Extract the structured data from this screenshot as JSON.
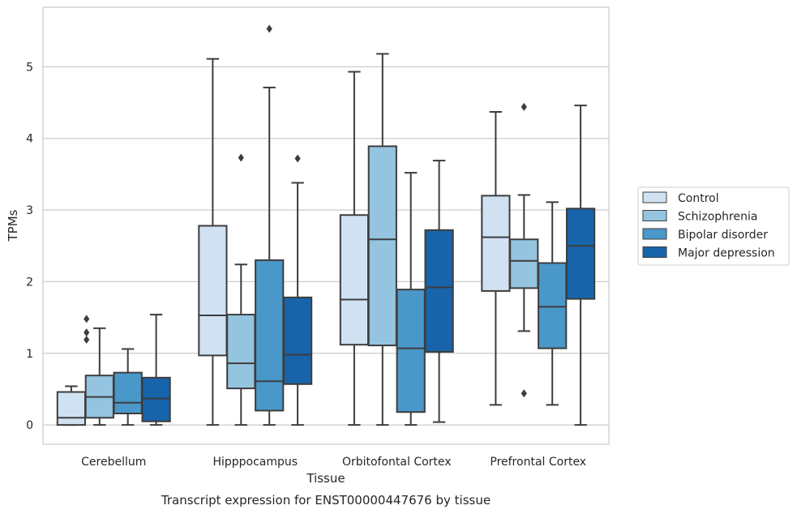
{
  "caption": "Transcript expression for ENST00000447676 by tissue",
  "chart_data": {
    "type": "boxplot",
    "xlabel": "Tissue",
    "ylabel": "TPMs",
    "ylim": [
      -0.27,
      5.83
    ],
    "yticks": [
      0,
      1,
      2,
      3,
      4,
      5
    ],
    "grid": "horizontal",
    "legend_position": "right",
    "categories": [
      "Cerebellum",
      "Hipppocampus",
      "Orbitofontal Cortex",
      "Prefrontal Cortex"
    ],
    "series": [
      {
        "name": "Control",
        "color": "#d0e1f2",
        "boxes": [
          {
            "whisker_low": 0,
            "q1": 0,
            "median": 0.1,
            "q3": 0.46,
            "whisker_high": 0.54,
            "outliers": []
          },
          {
            "whisker_low": 0,
            "q1": 0.97,
            "median": 1.53,
            "q3": 2.78,
            "whisker_high": 5.11,
            "outliers": []
          },
          {
            "whisker_low": 0,
            "q1": 1.12,
            "median": 1.75,
            "q3": 2.93,
            "whisker_high": 4.93,
            "outliers": []
          },
          {
            "whisker_low": 0.28,
            "q1": 1.87,
            "median": 2.62,
            "q3": 3.2,
            "whisker_high": 4.37,
            "outliers": []
          }
        ]
      },
      {
        "name": "Schizophrenia",
        "color": "#94c4df",
        "boxes": [
          {
            "whisker_low": 0,
            "q1": 0.1,
            "median": 0.39,
            "q3": 0.69,
            "whisker_high": 1.35,
            "outliers": []
          },
          {
            "whisker_low": 0,
            "q1": 0.51,
            "median": 0.86,
            "q3": 1.54,
            "whisker_high": 2.24,
            "outliers": [
              3.73
            ]
          },
          {
            "whisker_low": 0,
            "q1": 1.11,
            "median": 2.59,
            "q3": 3.89,
            "whisker_high": 5.18,
            "outliers": []
          },
          {
            "whisker_low": 1.31,
            "q1": 1.91,
            "median": 2.29,
            "q3": 2.59,
            "whisker_high": 3.21,
            "outliers": [
              0.44,
              4.44
            ]
          }
        ]
      },
      {
        "name": "Bipolar disorder",
        "color": "#4a98c9",
        "boxes": [
          {
            "whisker_low": 0,
            "q1": 0.16,
            "median": 0.31,
            "q3": 0.73,
            "whisker_high": 1.06,
            "outliers": []
          },
          {
            "whisker_low": 0,
            "q1": 0.2,
            "median": 0.61,
            "q3": 2.3,
            "whisker_high": 4.71,
            "outliers": [
              5.53
            ]
          },
          {
            "whisker_low": 0,
            "q1": 0.18,
            "median": 1.07,
            "q3": 1.89,
            "whisker_high": 3.52,
            "outliers": []
          },
          {
            "whisker_low": 0.28,
            "q1": 1.07,
            "median": 1.65,
            "q3": 2.26,
            "whisker_high": 3.11,
            "outliers": []
          }
        ]
      },
      {
        "name": "Major depression",
        "color": "#1764ab",
        "boxes": [
          {
            "whisker_low": 0,
            "q1": 0.05,
            "median": 0.37,
            "q3": 0.66,
            "whisker_high": 1.54,
            "outliers": []
          },
          {
            "whisker_low": 0,
            "q1": 0.57,
            "median": 0.98,
            "q3": 1.78,
            "whisker_high": 3.38,
            "outliers": [
              3.72
            ]
          },
          {
            "whisker_low": 0.04,
            "q1": 1.02,
            "median": 1.92,
            "q3": 2.72,
            "whisker_high": 3.69,
            "outliers": []
          },
          {
            "whisker_low": 0,
            "q1": 1.76,
            "median": 2.5,
            "q3": 3.02,
            "whisker_high": 4.46,
            "outliers": []
          }
        ]
      }
    ],
    "extra_outliers": [
      {
        "category": "Cerebellum",
        "series": "Control",
        "values": [
          1.19,
          1.29,
          1.48
        ]
      }
    ]
  }
}
